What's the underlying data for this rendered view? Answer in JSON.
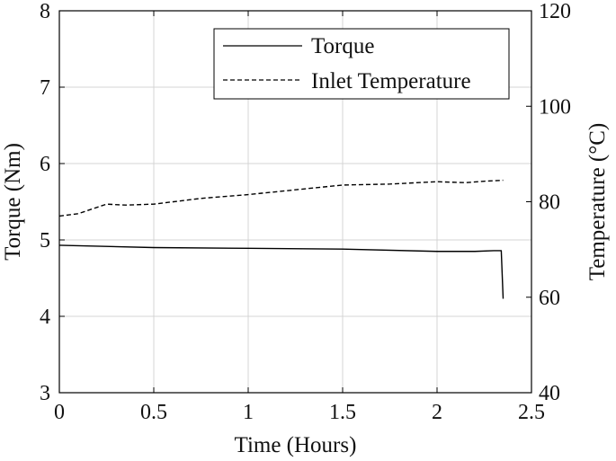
{
  "chart_data": {
    "type": "line",
    "title": "",
    "xlabel": "Time (Hours)",
    "ylabel_left": "Torque (Nm)",
    "ylabel_right": "Temperature (°C)",
    "xlim": [
      0,
      2.5
    ],
    "ylim_left": [
      3,
      8
    ],
    "ylim_right": [
      40,
      120
    ],
    "xticks": [
      "0",
      "0.5",
      "1",
      "1.5",
      "2",
      "2.5"
    ],
    "yticks_left": [
      "3",
      "4",
      "5",
      "6",
      "7",
      "8"
    ],
    "yticks_right": [
      "40",
      "60",
      "80",
      "100",
      "120"
    ],
    "grid": true,
    "legend_position": "top-right",
    "series": [
      {
        "name": "Torque",
        "axis": "left",
        "style": "solid",
        "color": "#000000",
        "x": [
          0,
          0.5,
          1.0,
          1.5,
          2.0,
          2.2,
          2.3,
          2.34,
          2.35
        ],
        "y": [
          4.93,
          4.9,
          4.89,
          4.88,
          4.85,
          4.85,
          4.86,
          4.86,
          4.23
        ]
      },
      {
        "name": "Inlet Temperature",
        "axis": "right",
        "style": "dashed",
        "color": "#000000",
        "x": [
          0,
          0.1,
          0.25,
          0.35,
          0.5,
          0.75,
          1.0,
          1.25,
          1.5,
          1.75,
          2.0,
          2.15,
          2.25,
          2.35
        ],
        "y": [
          77,
          77.5,
          79.5,
          79.3,
          79.5,
          80.7,
          81.5,
          82.5,
          83.5,
          83.7,
          84.2,
          84,
          84.3,
          84.5
        ]
      }
    ]
  }
}
